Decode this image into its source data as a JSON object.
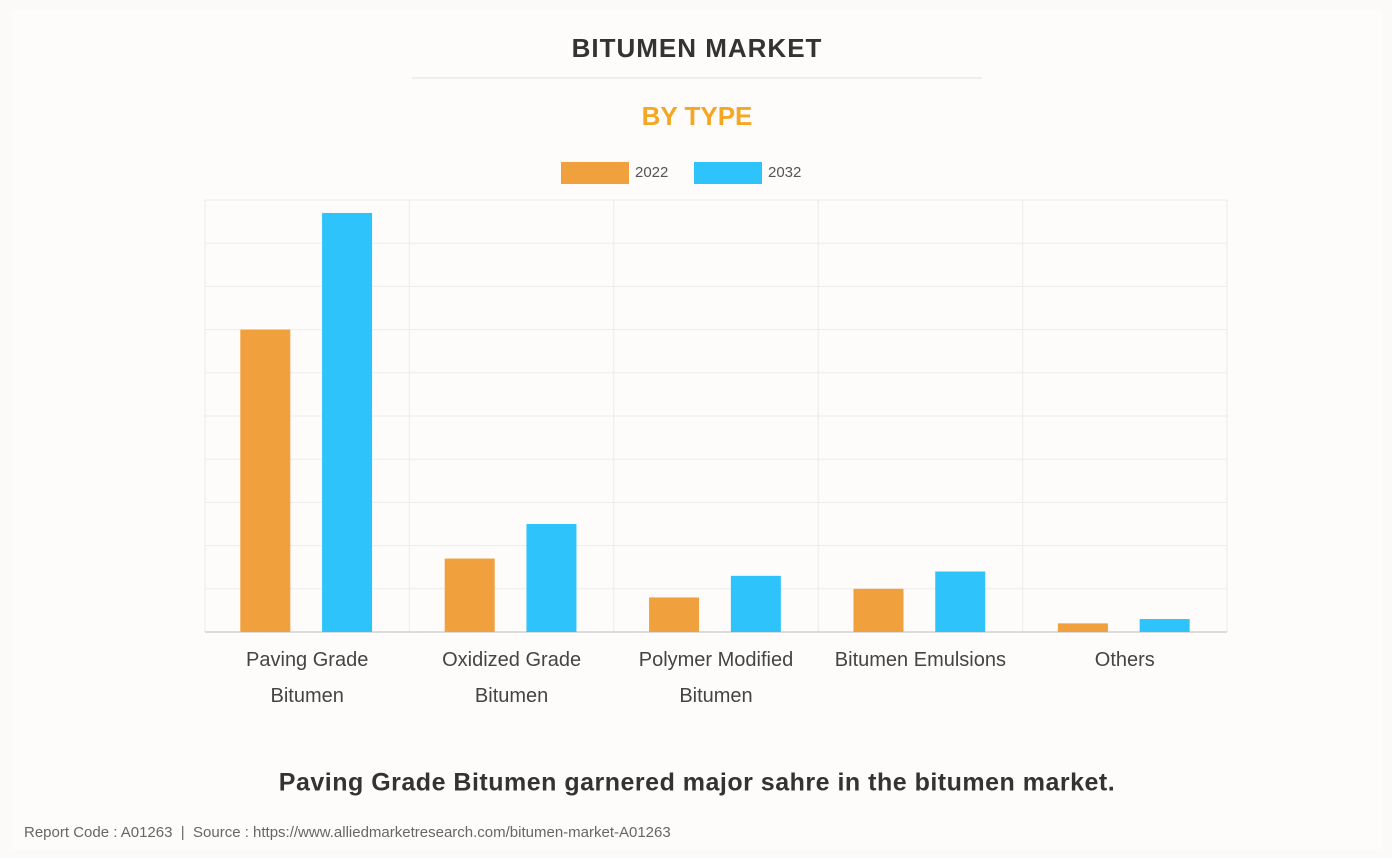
{
  "chart_data": {
    "type": "bar",
    "title": "BITUMEN MARKET",
    "subtitle": "BY TYPE",
    "categories": [
      "Paving Grade Bitumen",
      "Oxidized Grade Bitumen",
      "Polymer Modified Bitumen",
      "Bitumen Emulsions",
      "Others"
    ],
    "series": [
      {
        "name": "2022",
        "color": "#f0a03c",
        "values": [
          7.0,
          1.7,
          0.8,
          1.0,
          0.2
        ]
      },
      {
        "name": "2032",
        "color": "#2ec4fb",
        "values": [
          9.7,
          2.5,
          1.3,
          1.4,
          0.3
        ]
      }
    ],
    "ylim": [
      0,
      10
    ],
    "yticks": [
      0,
      1,
      2,
      3,
      4,
      5,
      6,
      7,
      8,
      9,
      10
    ],
    "grid": true,
    "legend": "top",
    "caption": "Paving Grade Bitumen garnered major sahre in the bitumen market.",
    "source": "Report Code : A01263  |  Source : https://www.alliedmarketresearch.com/bitumen-market-A01263"
  }
}
